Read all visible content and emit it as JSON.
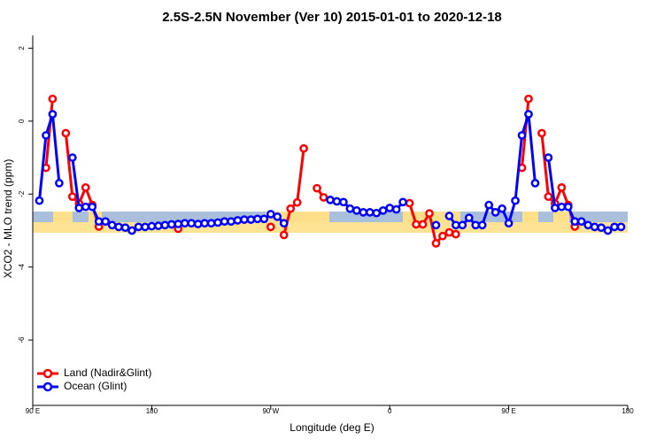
{
  "chart_data": {
    "type": "line",
    "title": "2.5S-2.5N November (Ver 10)   2015-01-01 to 2020-12-18",
    "x_label": "Longitude (deg E)",
    "y_label": "XCO2 - MLO trend (ppm)",
    "x": [
      95,
      100,
      105,
      110,
      115,
      120,
      125,
      130,
      135,
      140,
      145,
      150,
      155,
      160,
      165,
      170,
      175,
      180,
      185,
      190,
      195,
      200,
      205,
      210,
      215,
      220,
      225,
      230,
      235,
      240,
      245,
      250,
      255,
      260,
      265,
      270,
      275,
      280,
      285,
      290,
      295,
      300,
      305,
      310,
      315,
      320,
      325,
      330,
      335,
      340,
      345,
      350,
      355,
      360,
      365,
      370,
      375,
      380,
      385,
      390,
      395,
      400,
      405,
      410,
      415,
      420,
      425,
      430,
      435,
      440,
      445,
      450,
      455,
      460,
      465,
      470,
      475,
      480,
      485,
      490,
      495,
      500,
      505,
      510,
      515,
      520,
      525,
      530,
      535
    ],
    "series": [
      {
        "name": "Land (Nadir&Glint)",
        "color": "#ff0000",
        "values": [
          null,
          -1.28,
          0.61,
          null,
          -0.33,
          -2.07,
          -2.26,
          -1.82,
          -2.3,
          -2.89,
          null,
          null,
          null,
          null,
          null,
          null,
          null,
          null,
          null,
          null,
          null,
          -2.95,
          null,
          null,
          null,
          null,
          null,
          null,
          null,
          null,
          null,
          null,
          null,
          null,
          null,
          -2.9,
          null,
          -3.12,
          -2.4,
          -2.23,
          -0.75,
          null,
          -1.84,
          -2.09,
          null,
          null,
          null,
          null,
          null,
          null,
          null,
          null,
          null,
          null,
          null,
          null,
          -2.25,
          -2.83,
          -2.83,
          -2.53,
          -3.35,
          -3.15,
          -3.05,
          -3.1,
          null,
          null,
          null,
          null,
          null,
          null,
          null,
          null,
          null,
          -1.28,
          0.61,
          null,
          -0.33,
          -2.07,
          -2.26,
          -1.82,
          -2.3,
          -2.89,
          null,
          null,
          null,
          null,
          null,
          null,
          null
        ]
      },
      {
        "name": "Ocean (Glint)",
        "color": "#0000ff",
        "values": [
          -2.18,
          -0.39,
          0.19,
          -1.7,
          null,
          -1.0,
          -2.38,
          -2.35,
          -2.35,
          -2.75,
          -2.75,
          -2.85,
          -2.9,
          -2.92,
          -3.0,
          -2.9,
          -2.9,
          -2.88,
          -2.87,
          -2.85,
          -2.83,
          -2.82,
          -2.8,
          -2.8,
          -2.82,
          -2.8,
          -2.8,
          -2.78,
          -2.75,
          -2.75,
          -2.72,
          -2.7,
          -2.7,
          -2.68,
          -2.68,
          -2.55,
          -2.62,
          -2.8,
          null,
          null,
          null,
          null,
          null,
          null,
          -2.16,
          -2.2,
          -2.22,
          -2.4,
          -2.45,
          -2.5,
          -2.5,
          -2.52,
          -2.45,
          -2.38,
          -2.42,
          -2.22,
          null,
          null,
          null,
          null,
          -2.85,
          null,
          -2.6,
          -2.85,
          -2.85,
          -2.65,
          -2.85,
          -2.85,
          -2.3,
          -2.5,
          -2.4,
          -2.8,
          -2.18,
          -0.39,
          0.19,
          -1.7,
          null,
          -1.0,
          -2.38,
          -2.35,
          -2.35,
          -2.75,
          -2.75,
          -2.85,
          -2.9,
          -2.92,
          -3.0,
          -2.9,
          -2.9
        ]
      }
    ],
    "xlim": [
      90,
      540
    ],
    "xticks": [
      {
        "value": 90,
        "label": "90 E"
      },
      180,
      {
        "value": 270,
        "label": "90 W"
      },
      {
        "value": 360,
        "label": "0"
      },
      {
        "value": 450,
        "label": "90 E"
      },
      {
        "value": 540,
        "label": "180"
      }
    ],
    "ylim": [
      -7.72,
      2.35
    ],
    "yticks": [
      2,
      0,
      -2,
      -4,
      -6
    ],
    "legend": "bottom-left"
  }
}
